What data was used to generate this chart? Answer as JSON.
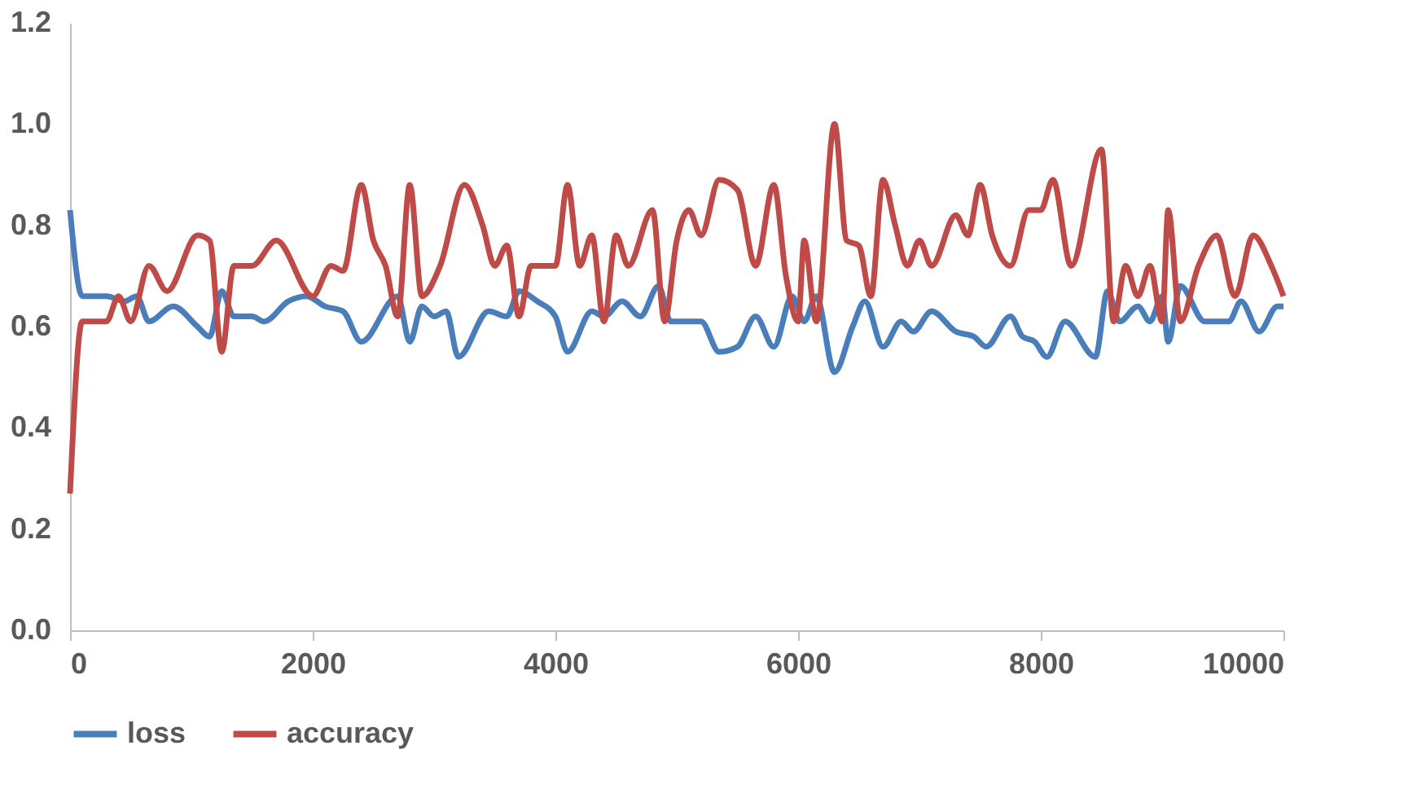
{
  "chart_data": {
    "type": "line",
    "xlim": [
      0,
      10000
    ],
    "xticks": [
      0,
      2000,
      4000,
      6000,
      8000,
      10000
    ],
    "ylim": [
      0,
      1.2
    ],
    "yticks": [
      {
        "value": 0,
        "label": "0.0"
      },
      0.2,
      0.4,
      0.6,
      0.8,
      {
        "value": 1,
        "label": "1.0"
      },
      1.2
    ],
    "grid": false,
    "legend": "bottom",
    "marker": "none",
    "line_style": "solid",
    "series": [
      {
        "name": "loss",
        "color": "#4a7ebb",
        "x": [
          0,
          100,
          300,
          450,
          550,
          650,
          850,
          1050,
          1150,
          1250,
          1350,
          1500,
          1600,
          1800,
          1950,
          2100,
          2250,
          2400,
          2700,
          2800,
          2900,
          3000,
          3100,
          3200,
          3450,
          3600,
          3700,
          3850,
          4000,
          4100,
          4300,
          4400,
          4550,
          4700,
          4850,
          4950,
          5200,
          5350,
          5500,
          5650,
          5800,
          5950,
          6050,
          6150,
          6300,
          6450,
          6550,
          6700,
          6850,
          6950,
          7100,
          7300,
          7450,
          7550,
          7750,
          7850,
          7950,
          8050,
          8200,
          8450,
          8550,
          8650,
          8800,
          8900,
          9000,
          9050,
          9150,
          9350,
          9550,
          9650,
          9800,
          9950,
          10000
        ],
        "values": [
          0.83,
          0.66,
          0.66,
          0.65,
          0.66,
          0.61,
          0.64,
          0.6,
          0.58,
          0.67,
          0.62,
          0.62,
          0.61,
          0.65,
          0.66,
          0.64,
          0.63,
          0.57,
          0.66,
          0.57,
          0.64,
          0.62,
          0.63,
          0.54,
          0.63,
          0.62,
          0.67,
          0.65,
          0.62,
          0.55,
          0.63,
          0.62,
          0.65,
          0.62,
          0.68,
          0.61,
          0.61,
          0.55,
          0.56,
          0.62,
          0.56,
          0.66,
          0.61,
          0.66,
          0.51,
          0.6,
          0.65,
          0.56,
          0.61,
          0.59,
          0.63,
          0.59,
          0.58,
          0.56,
          0.62,
          0.58,
          0.57,
          0.54,
          0.61,
          0.54,
          0.67,
          0.61,
          0.64,
          0.61,
          0.66,
          0.57,
          0.68,
          0.61,
          0.61,
          0.65,
          0.59,
          0.64,
          0.64
        ]
      },
      {
        "name": "accuracy",
        "color": "#be4b48",
        "x": [
          0,
          100,
          300,
          400,
          500,
          650,
          800,
          1050,
          1150,
          1250,
          1350,
          1500,
          1700,
          2000,
          2150,
          2250,
          2400,
          2500,
          2600,
          2700,
          2800,
          2900,
          3050,
          3250,
          3400,
          3500,
          3600,
          3700,
          3800,
          4000,
          4100,
          4200,
          4300,
          4400,
          4500,
          4600,
          4800,
          4900,
          5000,
          5100,
          5200,
          5350,
          5500,
          5650,
          5800,
          5900,
          6000,
          6050,
          6150,
          6300,
          6400,
          6500,
          6600,
          6700,
          6800,
          6900,
          7000,
          7100,
          7300,
          7400,
          7500,
          7600,
          7750,
          7900,
          8000,
          8100,
          8250,
          8500,
          8600,
          8700,
          8800,
          8900,
          9000,
          9050,
          9150,
          9300,
          9450,
          9600,
          9750,
          9900,
          10000
        ],
        "values": [
          0.27,
          0.61,
          0.61,
          0.66,
          0.61,
          0.72,
          0.67,
          0.78,
          0.77,
          0.55,
          0.72,
          0.72,
          0.77,
          0.66,
          0.72,
          0.71,
          0.88,
          0.77,
          0.72,
          0.62,
          0.88,
          0.66,
          0.72,
          0.88,
          0.8,
          0.72,
          0.76,
          0.62,
          0.72,
          0.72,
          0.88,
          0.72,
          0.78,
          0.61,
          0.78,
          0.72,
          0.83,
          0.61,
          0.77,
          0.83,
          0.78,
          0.89,
          0.87,
          0.72,
          0.88,
          0.7,
          0.61,
          0.77,
          0.61,
          1.0,
          0.77,
          0.76,
          0.66,
          0.89,
          0.8,
          0.72,
          0.77,
          0.72,
          0.82,
          0.78,
          0.88,
          0.78,
          0.72,
          0.83,
          0.83,
          0.89,
          0.72,
          0.95,
          0.61,
          0.72,
          0.66,
          0.72,
          0.61,
          0.83,
          0.61,
          0.72,
          0.78,
          0.66,
          0.78,
          0.72,
          0.66
        ]
      }
    ]
  }
}
